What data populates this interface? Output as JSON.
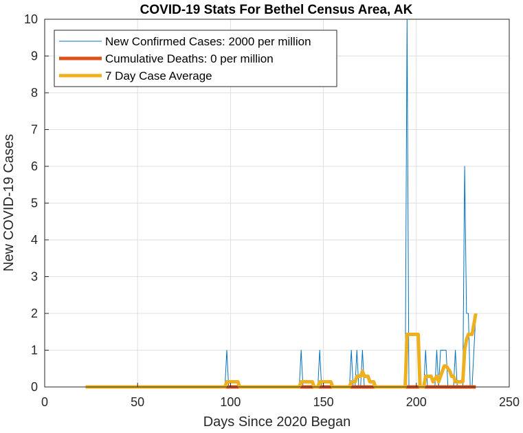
{
  "chart_data": {
    "type": "line",
    "title": "COVID-19 Stats For Bethel Census Area, AK",
    "xlabel": "Days Since 2020 Began",
    "ylabel": "New COVID-19 Cases",
    "xlim": [
      0,
      250
    ],
    "ylim": [
      0,
      10
    ],
    "xticks": [
      0,
      50,
      100,
      150,
      200,
      250
    ],
    "yticks": [
      0,
      1,
      2,
      3,
      4,
      5,
      6,
      7,
      8,
      9,
      10
    ],
    "grid": true,
    "legend_position": "top-left",
    "series": [
      {
        "name": "New Confirmed Cases: 2000 per million",
        "color": "#0072BD",
        "style": "thin",
        "points": [
          [
            22,
            0
          ],
          [
            97,
            0
          ],
          [
            98,
            1
          ],
          [
            99,
            0
          ],
          [
            137,
            0
          ],
          [
            138,
            1
          ],
          [
            139,
            0
          ],
          [
            147,
            0
          ],
          [
            148,
            1
          ],
          [
            149,
            0
          ],
          [
            164,
            0
          ],
          [
            165,
            1
          ],
          [
            166,
            0
          ],
          [
            167,
            0
          ],
          [
            168,
            1
          ],
          [
            169,
            0
          ],
          [
            170,
            0
          ],
          [
            171,
            1
          ],
          [
            172,
            0
          ],
          [
            194,
            0
          ],
          [
            195,
            10
          ],
          [
            196,
            0
          ],
          [
            197,
            0
          ],
          [
            198,
            0
          ],
          [
            199,
            0
          ],
          [
            200,
            0
          ],
          [
            201,
            0
          ],
          [
            202,
            0
          ],
          [
            203,
            0
          ],
          [
            204,
            0
          ],
          [
            205,
            1
          ],
          [
            206,
            0
          ],
          [
            207,
            0
          ],
          [
            208,
            0
          ],
          [
            209,
            0
          ],
          [
            210,
            0
          ],
          [
            211,
            1
          ],
          [
            212,
            0
          ],
          [
            213,
            1
          ],
          [
            214,
            1
          ],
          [
            215,
            1
          ],
          [
            216,
            1
          ],
          [
            217,
            0
          ],
          [
            218,
            0
          ],
          [
            219,
            0
          ],
          [
            220,
            0
          ],
          [
            221,
            1
          ],
          [
            222,
            0
          ],
          [
            223,
            0
          ],
          [
            224,
            0
          ],
          [
            225,
            0
          ],
          [
            226,
            6
          ],
          [
            227,
            2
          ],
          [
            228,
            2
          ],
          [
            229,
            0
          ],
          [
            230,
            0
          ],
          [
            231,
            1
          ],
          [
            232,
            2
          ]
        ]
      },
      {
        "name": "Cumulative Deaths: 0 per million",
        "color": "#D95319",
        "style": "thick",
        "points": [
          [
            22,
            0
          ],
          [
            232,
            0
          ]
        ]
      },
      {
        "name": "7 Day Case Average",
        "color": "#EDB120",
        "style": "thick",
        "points": [
          [
            22,
            0
          ],
          [
            97,
            0
          ],
          [
            98,
            0.14
          ],
          [
            104,
            0.14
          ],
          [
            105,
            0
          ],
          [
            137,
            0
          ],
          [
            138,
            0.14
          ],
          [
            144,
            0.14
          ],
          [
            145,
            0
          ],
          [
            147,
            0
          ],
          [
            148,
            0.14
          ],
          [
            154,
            0.14
          ],
          [
            155,
            0
          ],
          [
            164,
            0
          ],
          [
            165,
            0.14
          ],
          [
            167,
            0.14
          ],
          [
            168,
            0.29
          ],
          [
            170,
            0.29
          ],
          [
            171,
            0.43
          ],
          [
            172,
            0.29
          ],
          [
            174,
            0.29
          ],
          [
            175,
            0.14
          ],
          [
            177,
            0.14
          ],
          [
            178,
            0
          ],
          [
            194,
            0
          ],
          [
            195,
            1.43
          ],
          [
            201,
            1.43
          ],
          [
            202,
            0
          ],
          [
            204,
            0
          ],
          [
            205,
            0.29
          ],
          [
            208,
            0.29
          ],
          [
            209,
            0.14
          ],
          [
            211,
            0.29
          ],
          [
            212,
            0.14
          ],
          [
            213,
            0.29
          ],
          [
            215,
            0.57
          ],
          [
            216,
            0.57
          ],
          [
            218,
            0.43
          ],
          [
            219,
            0.29
          ],
          [
            220,
            0.29
          ],
          [
            221,
            0.14
          ],
          [
            225,
            0.14
          ],
          [
            226,
            1
          ],
          [
            227,
            1.29
          ],
          [
            228,
            1.43
          ],
          [
            230,
            1.43
          ],
          [
            231,
            1.71
          ],
          [
            232,
            2
          ]
        ]
      }
    ]
  }
}
